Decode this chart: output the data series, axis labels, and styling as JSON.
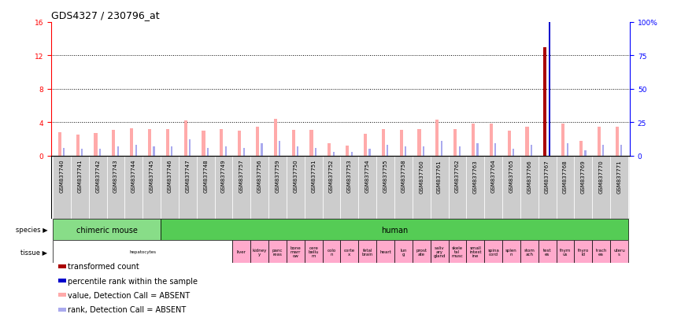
{
  "title": "GDS4327 / 230796_at",
  "samples": [
    "GSM837740",
    "GSM837741",
    "GSM837742",
    "GSM837743",
    "GSM837744",
    "GSM837745",
    "GSM837746",
    "GSM837747",
    "GSM837748",
    "GSM837749",
    "GSM837757",
    "GSM837756",
    "GSM837759",
    "GSM837750",
    "GSM837751",
    "GSM837752",
    "GSM837753",
    "GSM837754",
    "GSM837755",
    "GSM837758",
    "GSM837760",
    "GSM837761",
    "GSM837762",
    "GSM837763",
    "GSM837764",
    "GSM837765",
    "GSM837766",
    "GSM837767",
    "GSM837768",
    "GSM837769",
    "GSM837770",
    "GSM837771"
  ],
  "transformed_count": [
    2.8,
    2.5,
    2.7,
    3.1,
    3.3,
    3.2,
    3.2,
    4.2,
    3.0,
    3.2,
    3.0,
    3.5,
    4.4,
    3.1,
    3.1,
    1.5,
    1.2,
    2.6,
    3.2,
    3.1,
    3.2,
    4.3,
    3.2,
    3.8,
    3.8,
    3.0,
    3.5,
    13.0,
    3.8,
    1.8,
    3.5,
    3.5
  ],
  "percentile_rank": [
    6,
    5,
    5,
    7,
    8,
    7,
    7,
    12,
    6,
    7,
    6,
    9,
    11,
    7,
    6,
    3,
    3,
    5,
    8,
    7,
    7,
    11,
    7,
    9,
    9,
    5,
    8,
    100,
    9,
    4,
    8,
    8
  ],
  "detection_present": [
    false,
    false,
    false,
    false,
    false,
    false,
    false,
    false,
    false,
    false,
    false,
    false,
    false,
    false,
    false,
    false,
    false,
    false,
    false,
    false,
    false,
    false,
    false,
    false,
    false,
    false,
    false,
    true,
    false,
    false,
    false,
    false
  ],
  "species_groups": [
    {
      "label": "chimeric mouse",
      "start": 0,
      "end": 6,
      "color": "#88dd88"
    },
    {
      "label": "human",
      "start": 6,
      "end": 32,
      "color": "#55cc55"
    }
  ],
  "tissue_groups": [
    {
      "label": "hepatocytes",
      "start": 0,
      "end": 10,
      "color": "#ffffff"
    },
    {
      "label": "liver",
      "start": 10,
      "end": 11,
      "color": "#ffaacc"
    },
    {
      "label": "kidney\ny",
      "start": 11,
      "end": 12,
      "color": "#ffaacc"
    },
    {
      "label": "panc\nreas",
      "start": 12,
      "end": 13,
      "color": "#ffaacc"
    },
    {
      "label": "bone\nmarr\now",
      "start": 13,
      "end": 14,
      "color": "#ffaacc"
    },
    {
      "label": "cere\nbellu\nm",
      "start": 14,
      "end": 15,
      "color": "#ffaacc"
    },
    {
      "label": "colo\nn",
      "start": 15,
      "end": 16,
      "color": "#ffaacc"
    },
    {
      "label": "corte\nx",
      "start": 16,
      "end": 17,
      "color": "#ffaacc"
    },
    {
      "label": "fetal\nbrain",
      "start": 17,
      "end": 18,
      "color": "#ffaacc"
    },
    {
      "label": "heart",
      "start": 18,
      "end": 19,
      "color": "#ffaacc"
    },
    {
      "label": "lun\ng",
      "start": 19,
      "end": 20,
      "color": "#ffaacc"
    },
    {
      "label": "prost\nate",
      "start": 20,
      "end": 21,
      "color": "#ffaacc"
    },
    {
      "label": "saliv\nary\ngland",
      "start": 21,
      "end": 22,
      "color": "#ffaacc"
    },
    {
      "label": "skele\ntal\nmusc",
      "start": 22,
      "end": 23,
      "color": "#ffaacc"
    },
    {
      "label": "small\nintest\nine",
      "start": 23,
      "end": 24,
      "color": "#ffaacc"
    },
    {
      "label": "spina\ncord",
      "start": 24,
      "end": 25,
      "color": "#ffaacc"
    },
    {
      "label": "splen\nn",
      "start": 25,
      "end": 26,
      "color": "#ffaacc"
    },
    {
      "label": "stom\nach",
      "start": 26,
      "end": 27,
      "color": "#ffaacc"
    },
    {
      "label": "test\nes",
      "start": 27,
      "end": 28,
      "color": "#ffaacc"
    },
    {
      "label": "thym\nus",
      "start": 28,
      "end": 29,
      "color": "#ffaacc"
    },
    {
      "label": "thyro\nid",
      "start": 29,
      "end": 30,
      "color": "#ffaacc"
    },
    {
      "label": "trach\nea",
      "start": 30,
      "end": 31,
      "color": "#ffaacc"
    },
    {
      "label": "uteru\ns",
      "start": 31,
      "end": 32,
      "color": "#ffaacc"
    }
  ],
  "ylim_left": [
    0,
    16
  ],
  "yticks_left": [
    0,
    4,
    8,
    12,
    16
  ],
  "yticks_right": [
    0,
    25,
    50,
    75,
    100
  ],
  "color_present_count": "#aa0000",
  "color_present_rank": "#0000cc",
  "color_absent_count": "#ffaaaa",
  "color_absent_rank": "#aaaaee",
  "bg_color": "#ffffff",
  "sample_band_color": "#cccccc",
  "title_fontsize": 9,
  "tick_fontsize": 6.5,
  "sample_fontsize": 5,
  "legend_fontsize": 7,
  "species_fontsize": 7,
  "tissue_fontsize": 4
}
